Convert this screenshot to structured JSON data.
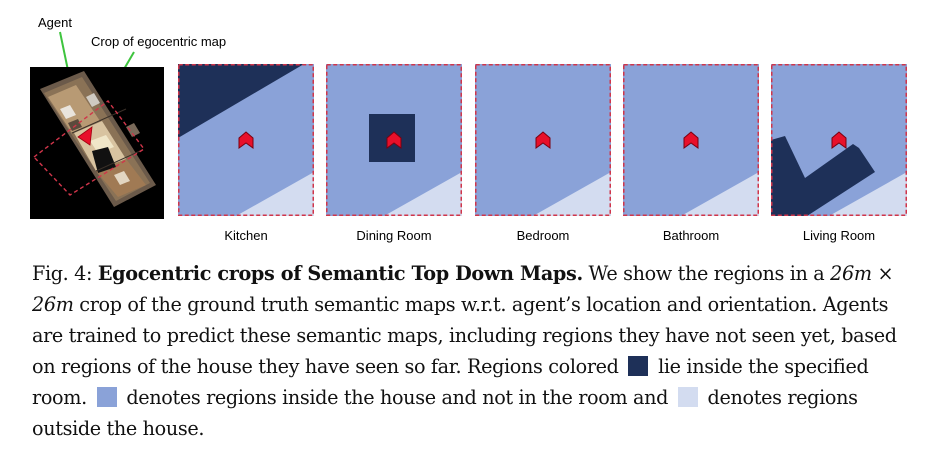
{
  "annotations": {
    "agent": "Agent",
    "crop": "Crop of egocentric map"
  },
  "colors": {
    "in_room": "#1e3058",
    "in_house": "#8aa2d8",
    "outside": "#d3dcf0",
    "agent_marker": "#e8102a",
    "border": "#d0354a",
    "annotation_line": "#3ec43e"
  },
  "panels": [
    {
      "label": "Kitchen"
    },
    {
      "label": "Dining Room"
    },
    {
      "label": "Bedroom"
    },
    {
      "label": "Bathroom"
    },
    {
      "label": "Living Room"
    }
  ],
  "caption": {
    "prefix": "Fig. 4: ",
    "bold": "Egocentric crops of Semantic Top Down Maps.",
    "t1": " We show the regions in a ",
    "m1": "26m",
    "t2": " × ",
    "m2": "26m",
    "t3": " crop of the ground truth semantic maps w.r.t. agent’s location and orientation. Agents are trained to predict these semantic maps, including regions they have not seen yet, based on regions of the house they have seen so far. Regions colored ",
    "t4": " lie inside the specified room. ",
    "t5": " denotes regions inside the house and not in the room and ",
    "t6": " denotes regions outside the house."
  }
}
